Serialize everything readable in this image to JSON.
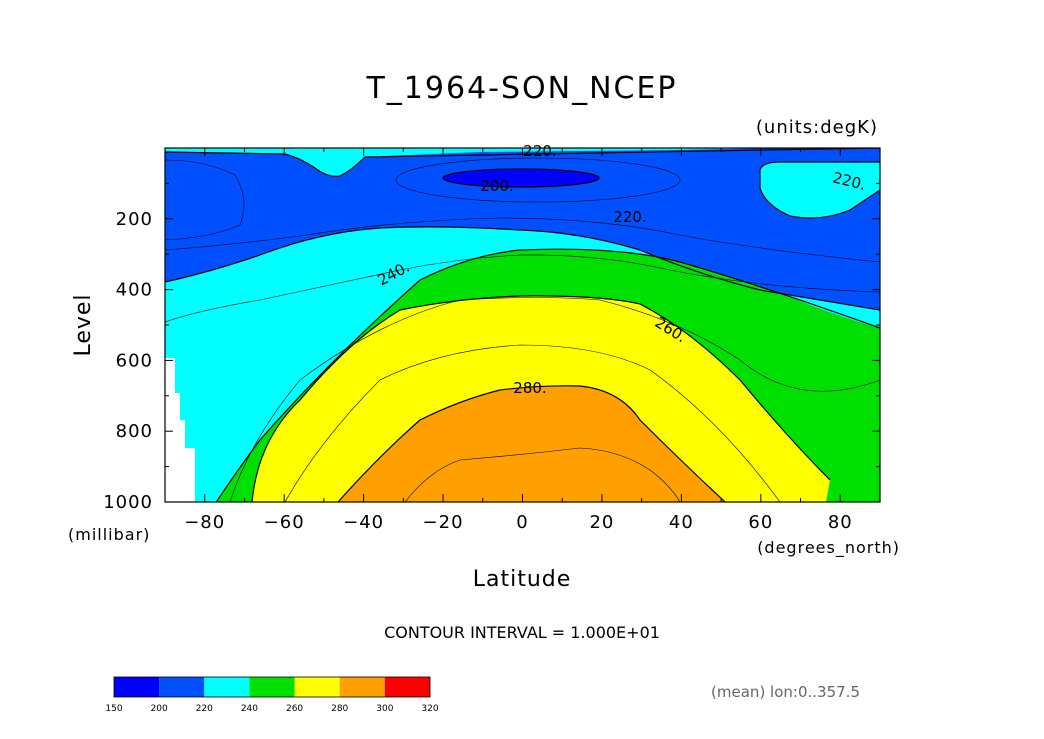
{
  "chart_data": {
    "type": "heatmap",
    "title": "T_1964-SON_NCEP",
    "units_label": "(units:degK)",
    "xlabel": "Latitude",
    "ylabel": "Level",
    "x_units": "(degrees_north)",
    "y_units": "(millibar)",
    "xlim": [
      -90,
      90
    ],
    "ylim": [
      1000,
      0
    ],
    "x_ticks": [
      -80,
      -60,
      -40,
      -20,
      0,
      20,
      40,
      60,
      80
    ],
    "y_ticks": [
      200,
      400,
      600,
      800,
      1000
    ],
    "contour_labels": [
      "220.",
      "200.",
      "220.",
      "220.",
      "240.",
      "260.",
      "280."
    ],
    "contour_interval_text": "CONTOUR INTERVAL = 1.000E+01",
    "mean_text": "(mean) lon:0..357.5",
    "colorbar": {
      "levels": [
        150,
        200,
        220,
        240,
        260,
        280,
        300,
        320
      ],
      "colors": [
        "#0000ff",
        "#0050ff",
        "#00ffff",
        "#00e000",
        "#ffff00",
        "#ffa000",
        "#ff0000"
      ]
    },
    "grid": false
  }
}
